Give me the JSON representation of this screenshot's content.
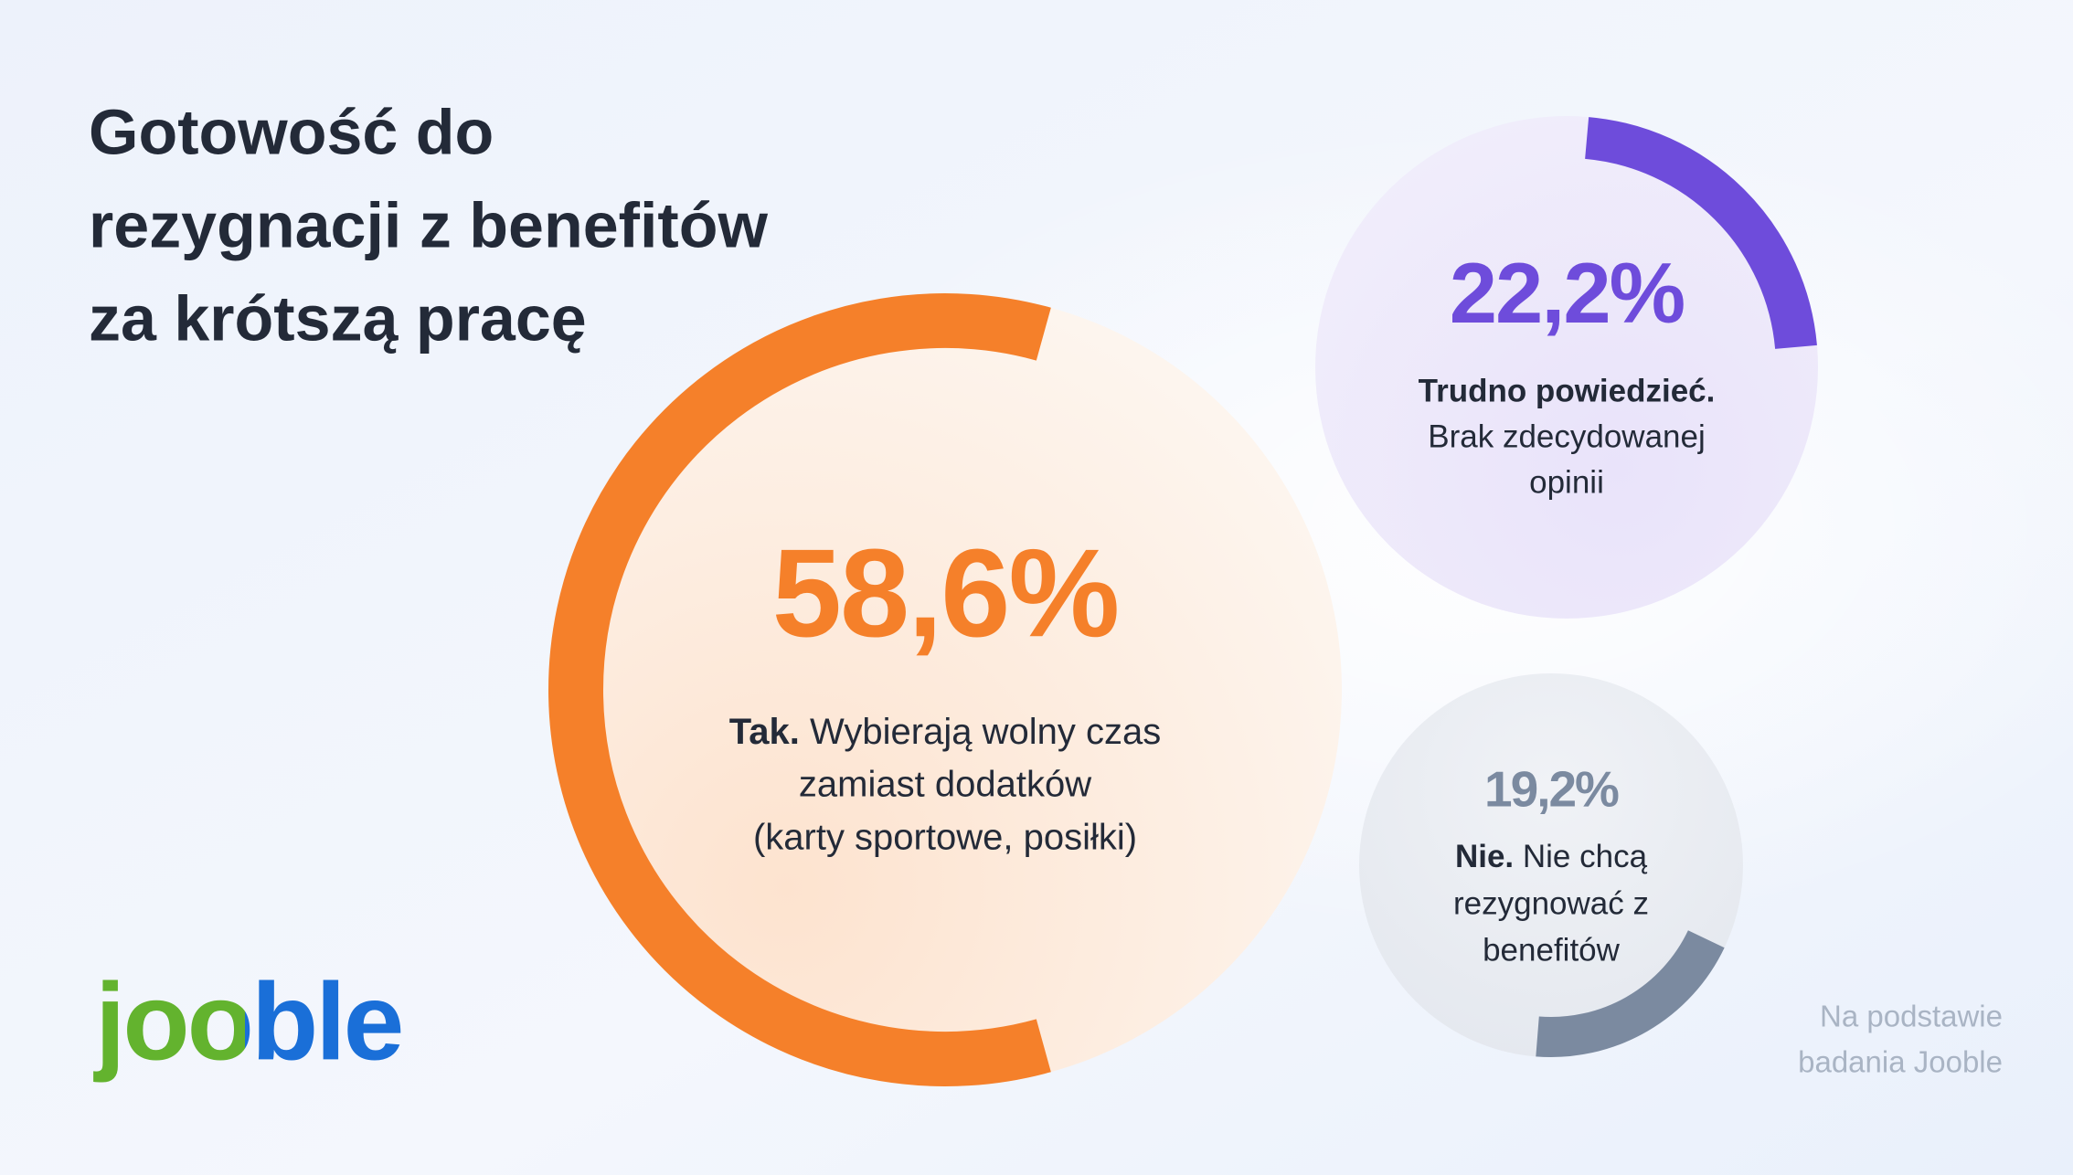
{
  "chart_data": {
    "type": "arc",
    "title": [
      "Gotowość do",
      "rezygnacji z benefitów",
      "za krótszą pracę"
    ],
    "items": [
      {
        "value": 58.6,
        "value_label": "58,6%",
        "label": "Tak.",
        "description": [
          "Wybierają wolny czas",
          "zamiast dodatków",
          "(karty sportowe, posiłki)"
        ],
        "color": "#f5802a"
      },
      {
        "value": 22.2,
        "value_label": "22,2%",
        "label": "Trudno powiedzieć.",
        "description": [
          "Brak zdecydowanej",
          "opinii"
        ],
        "color": "#6e4cdb"
      },
      {
        "value": 19.2,
        "value_label": "19,2%",
        "label": "Nie.",
        "description": [
          "Nie chcą",
          "rezygnować z",
          "benefitów"
        ],
        "color": "#7b8aa0"
      }
    ],
    "logo": "jooble",
    "source": [
      "Na podstawie",
      "badania Jooble"
    ]
  }
}
